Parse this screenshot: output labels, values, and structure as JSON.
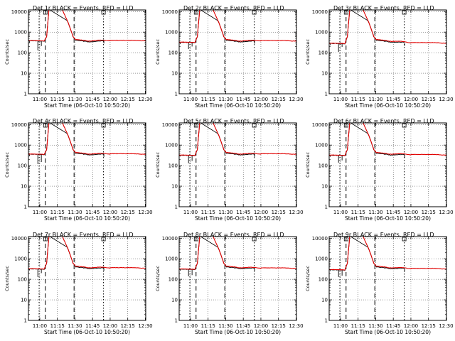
{
  "colors": {
    "events": "#000000",
    "lld": "#e00000",
    "frame": "#000000",
    "background": "#ffffff"
  },
  "chart_data": {
    "type": "line",
    "layout": "3x3 grid of panels",
    "y_scale": "log",
    "ylim": [
      1,
      12000
    ],
    "yticks": [
      "1",
      "10",
      "100",
      "1000",
      "10000"
    ],
    "x_unit": "minutes after 10:50:20 on 06-Oct-10",
    "xlim": [
      0,
      100
    ],
    "xticks": [
      "11:00",
      "11:15",
      "11:30",
      "11:45",
      "12:00",
      "12:15",
      "12:30"
    ],
    "ylabel": "Counts/sec",
    "xlabel": "Start Time (06-Oct-10 10:50:20)",
    "grid": true,
    "series_description": [
      "BLACK = Events",
      "RED = LLD"
    ],
    "markers": {
      "square_top": [
        14.4,
        64.0
      ]
    },
    "panels": [
      {
        "title": "Det 1r BLACK = Events, RED = LLD",
        "base": 390,
        "end": 400,
        "dotted": [
          9.1,
          64.0
        ],
        "dashed": [
          14.4,
          38.9
        ],
        "dips": [
          [
            1,
            300
          ],
          [
            8,
            130
          ],
          [
            11,
            210
          ]
        ]
      },
      {
        "title": "Det 2r BLACK = Events, RED = LLD",
        "base": 330,
        "end": 390,
        "dotted": [
          9.1,
          64.0
        ],
        "dashed": [
          14.4,
          38.9
        ],
        "dips": [
          [
            1,
            260
          ],
          [
            8,
            150
          ],
          [
            11,
            200
          ]
        ]
      },
      {
        "title": "Det 3r BLACK = Events, RED = LLD",
        "base": 290,
        "end": 310,
        "dotted": [
          9.1,
          64.0
        ],
        "dashed": [
          14.4,
          38.9
        ],
        "dips": [
          [
            1,
            230
          ],
          [
            8,
            110
          ],
          [
            11,
            190
          ]
        ]
      },
      {
        "title": "Det 4r BLACK = Events, RED = LLD",
        "base": 370,
        "end": 380,
        "dotted": [
          9.1,
          64.0
        ],
        "dashed": [
          14.4,
          38.9
        ],
        "dips": [
          [
            1,
            290
          ],
          [
            8,
            120
          ],
          [
            11,
            150
          ]
        ]
      },
      {
        "title": "Det 5r BLACK = Events, RED = LLD",
        "base": 330,
        "end": 380,
        "dotted": [
          9.1,
          64.0
        ],
        "dashed": [
          14.4,
          38.9
        ],
        "dips": [
          [
            1,
            280
          ],
          [
            8,
            130
          ],
          [
            11,
            170
          ]
        ]
      },
      {
        "title": "Det 6r BLACK = Events, RED = LLD",
        "base": 330,
        "end": 350,
        "dotted": [
          9.1,
          64.0
        ],
        "dashed": [
          14.4,
          38.9
        ],
        "dips": [
          [
            1,
            270
          ],
          [
            8,
            140
          ],
          [
            11,
            180
          ]
        ]
      },
      {
        "title": "Det 7r BLACK = Events, RED = LLD",
        "base": 330,
        "end": 370,
        "dotted": [
          9.1,
          64.0
        ],
        "dashed": [
          14.4,
          38.9
        ],
        "dips": [
          [
            1,
            270
          ],
          [
            8,
            130
          ],
          [
            11,
            200
          ]
        ]
      },
      {
        "title": "Det 8r BLACK = Events, RED = LLD",
        "base": 320,
        "end": 360,
        "dotted": [
          9.1,
          64.0
        ],
        "dashed": [
          14.4,
          38.9
        ],
        "dips": [
          [
            1,
            260
          ],
          [
            8,
            140
          ],
          [
            11,
            160
          ]
        ]
      },
      {
        "title": "Det 9r BLACK = Events, RED = LLD",
        "base": 300,
        "end": 340,
        "dotted": [
          9.1,
          64.0
        ],
        "dashed": [
          14.4,
          38.9
        ],
        "dips": [
          [
            1,
            250
          ],
          [
            8,
            130
          ],
          [
            11,
            150
          ]
        ]
      }
    ]
  }
}
